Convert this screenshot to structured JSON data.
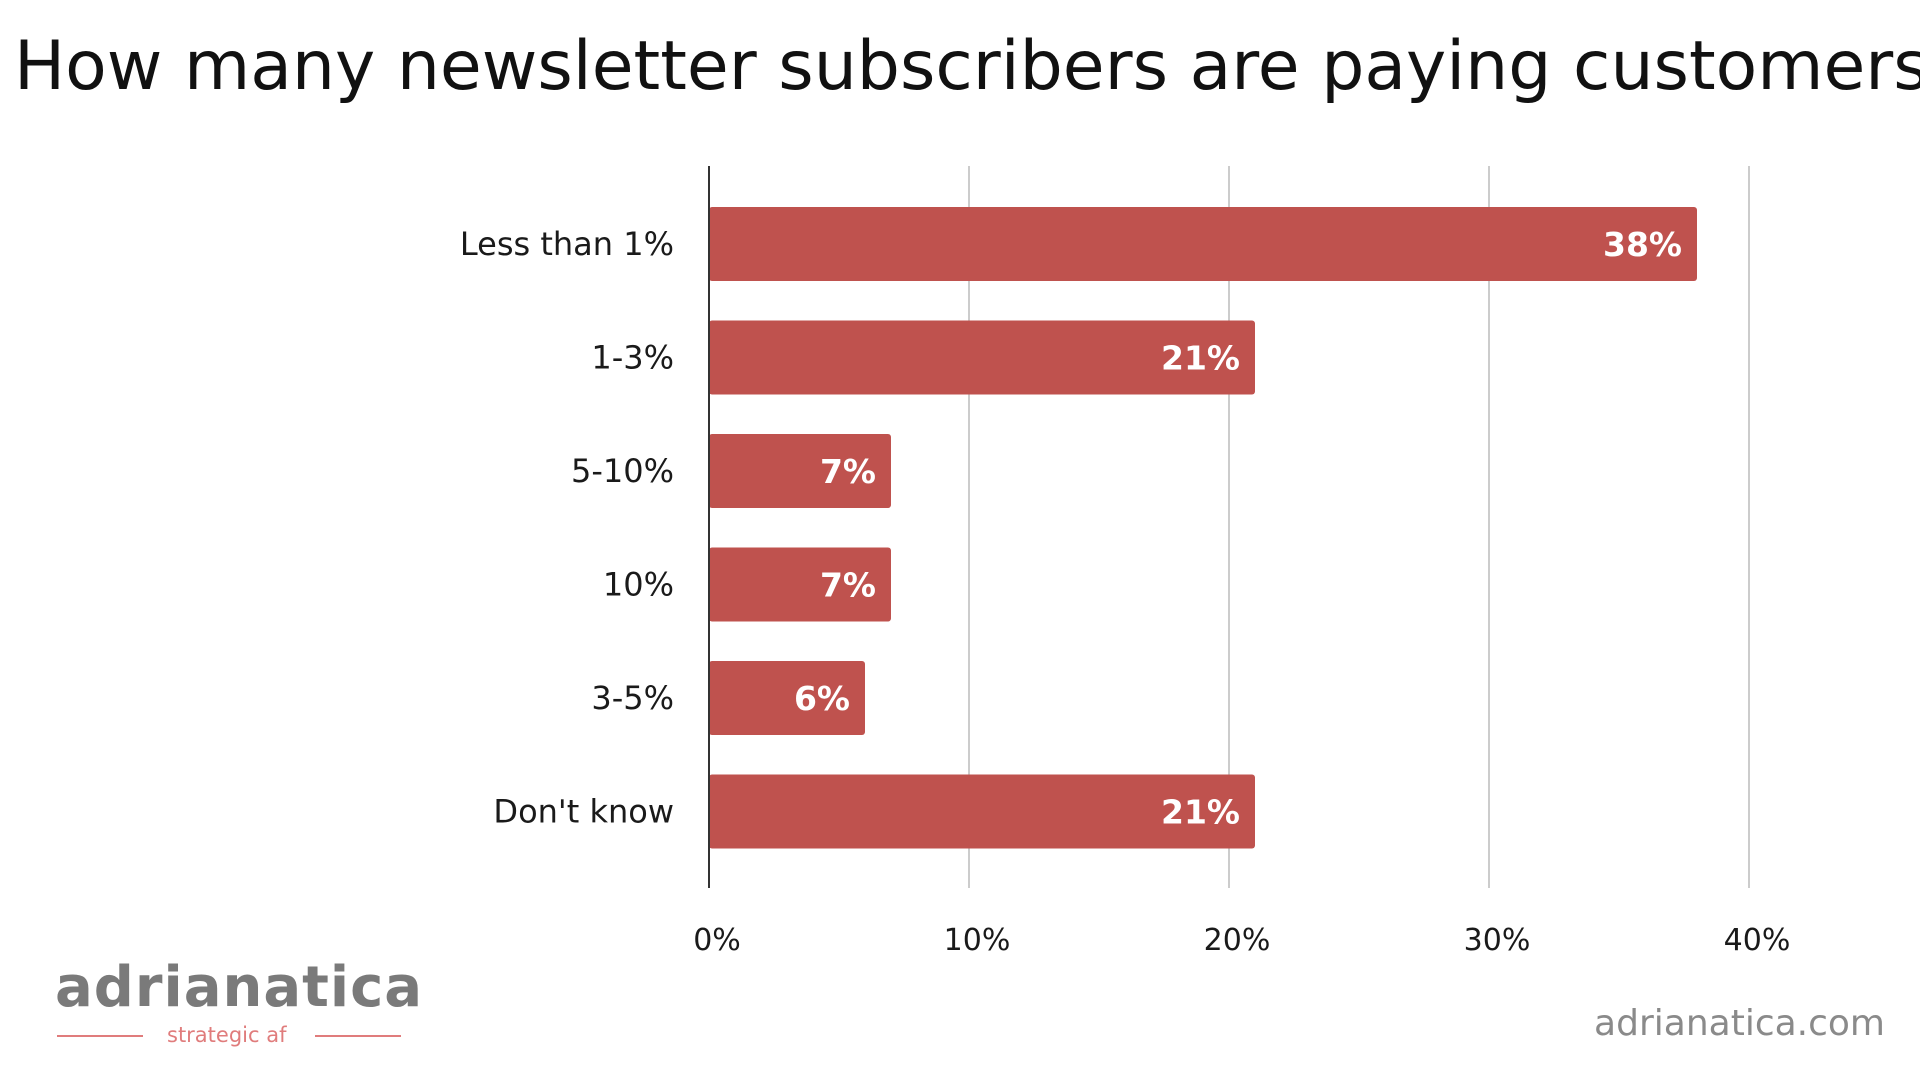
{
  "chart_data": {
    "type": "bar",
    "orientation": "horizontal",
    "title": "How many newsletter subscribers are paying customers",
    "categories": [
      "Less than 1%",
      "1-3%",
      "5-10%",
      "10%",
      "3-5%",
      "Don't know"
    ],
    "values": [
      38,
      21,
      7,
      7,
      6,
      21
    ],
    "value_labels": [
      "38%",
      "21%",
      "7%",
      "7%",
      "6%",
      "21%"
    ],
    "xlim": [
      0,
      40
    ],
    "x_ticks": [
      0,
      10,
      20,
      30,
      40
    ],
    "x_tick_labels": [
      "0%",
      "10%",
      "20%",
      "30%",
      "40%"
    ],
    "grid": true,
    "bar_color": "#bf524e",
    "grid_color": "#cccccc"
  },
  "branding": {
    "logo_text": "adrianatica",
    "logo_tagline": "strategic af",
    "site_url": "adrianatica.com",
    "logo_color": "#7a7a7a",
    "tagline_color": "#e07c7c"
  }
}
